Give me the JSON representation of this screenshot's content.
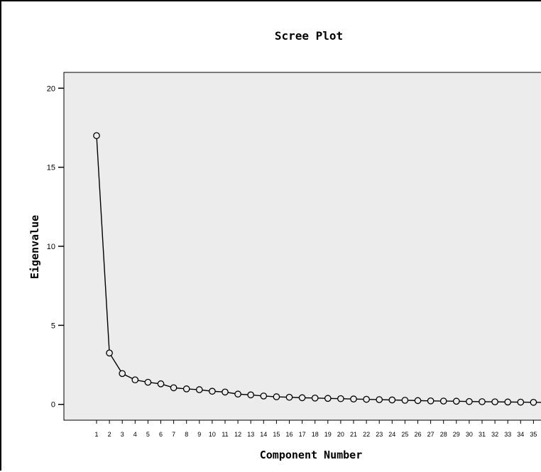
{
  "chart_data": {
    "type": "line",
    "title": "Scree Plot",
    "xlabel": "Component Number",
    "ylabel": "Eigenvalue",
    "ylim": [
      -1,
      21
    ],
    "yticks": [
      "0",
      "5",
      "10",
      "15",
      "20"
    ],
    "x": [
      1,
      2,
      3,
      4,
      5,
      6,
      7,
      8,
      9,
      10,
      11,
      12,
      13,
      14,
      15,
      16,
      17,
      18,
      19,
      20,
      21,
      22,
      23,
      24,
      25,
      26,
      27,
      28,
      29,
      30,
      31,
      32,
      33,
      34,
      35,
      36
    ],
    "values": [
      17.0,
      3.25,
      1.95,
      1.55,
      1.4,
      1.3,
      1.05,
      0.98,
      0.93,
      0.83,
      0.78,
      0.65,
      0.6,
      0.53,
      0.48,
      0.45,
      0.42,
      0.4,
      0.38,
      0.36,
      0.34,
      0.32,
      0.3,
      0.28,
      0.26,
      0.24,
      0.22,
      0.21,
      0.2,
      0.18,
      0.17,
      0.16,
      0.15,
      0.14,
      0.13,
      0.12
    ],
    "grid": false,
    "legend": "none",
    "colors": {
      "plot_background": "#ececec",
      "line": "#000000",
      "marker_fill": "#ececec"
    }
  }
}
